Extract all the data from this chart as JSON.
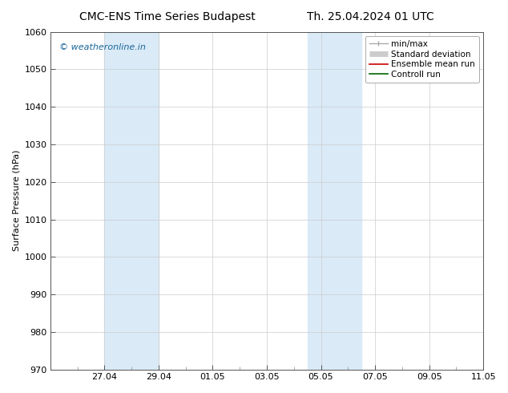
{
  "title_left": "CMC-ENS Time Series Budapest",
  "title_right": "Th. 25.04.2024 01 UTC",
  "ylabel": "Surface Pressure (hPa)",
  "ylim": [
    970,
    1060
  ],
  "yticks": [
    970,
    980,
    990,
    1000,
    1010,
    1020,
    1030,
    1040,
    1050,
    1060
  ],
  "x_start_date": "2024-04-25 01:00",
  "xtick_labels": [
    "27.04",
    "29.04",
    "01.05",
    "03.05",
    "05.05",
    "07.05",
    "09.05",
    "11.05"
  ],
  "xtick_positions": [
    2,
    4,
    6,
    8,
    10,
    12,
    14,
    16
  ],
  "xlim": [
    0,
    16
  ],
  "shaded_bands": [
    {
      "x_start": 2.0,
      "x_end": 4.0,
      "color": "#daeaf7"
    },
    {
      "x_start": 9.5,
      "x_end": 11.5,
      "color": "#daeaf7"
    }
  ],
  "watermark_text": "© weatheronline.in",
  "watermark_color": "#1a6699",
  "legend_items": [
    {
      "label": "min/max",
      "color": "#aaaaaa",
      "lw": 1.0
    },
    {
      "label": "Standard deviation",
      "color": "#cccccc",
      "lw": 5
    },
    {
      "label": "Ensemble mean run",
      "color": "#cc0000",
      "lw": 1.2
    },
    {
      "label": "Controll run",
      "color": "#006600",
      "lw": 1.2
    }
  ],
  "background_color": "#ffffff",
  "plot_bg_color": "#ffffff",
  "grid_color": "#cccccc",
  "font_family": "DejaVu Sans",
  "title_fontsize": 10,
  "axis_label_fontsize": 8,
  "tick_fontsize": 8,
  "legend_fontsize": 7.5
}
